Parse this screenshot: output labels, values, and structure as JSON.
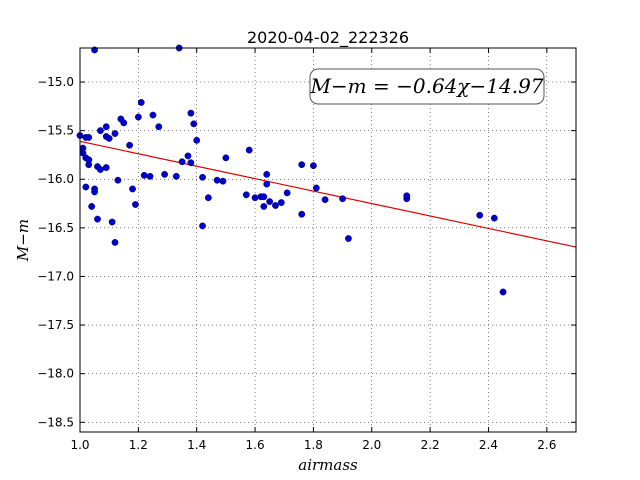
{
  "chart_data": {
    "type": "scatter",
    "title": "2020-04-02_222326",
    "xlabel": "airmass",
    "ylabel": "M−m",
    "xlim": [
      1.0,
      2.7
    ],
    "ylim": [
      -18.6,
      -14.65
    ],
    "y_inverted": false,
    "grid": true,
    "x_ticks": [
      1.0,
      1.2,
      1.4,
      1.6,
      1.8,
      2.0,
      2.2,
      2.4,
      2.6
    ],
    "x_tick_labels": [
      "1.0",
      "1.2",
      "1.4",
      "1.6",
      "1.8",
      "2.0",
      "2.2",
      "2.4",
      "2.6"
    ],
    "y_ticks": [
      -15.0,
      -15.5,
      -16.0,
      -16.5,
      -17.0,
      -17.5,
      -18.0,
      -18.5
    ],
    "y_tick_labels": [
      "−15.0",
      "−15.5",
      "−16.0",
      "−16.5",
      "−17.0",
      "−17.5",
      "−18.0",
      "−18.5"
    ],
    "annotation": "M−m = −0.64χ−14.97",
    "fit_line": {
      "slope": -0.64,
      "intercept": -14.97,
      "color": "#dd0000"
    },
    "marker_color": "#0000cc",
    "series": [
      {
        "points": [
          [
            1.0,
            -15.55
          ],
          [
            1.01,
            -15.68
          ],
          [
            1.01,
            -15.73
          ],
          [
            1.02,
            -15.57
          ],
          [
            1.02,
            -15.78
          ],
          [
            1.02,
            -16.08
          ],
          [
            1.03,
            -15.57
          ],
          [
            1.03,
            -15.8
          ],
          [
            1.03,
            -15.85
          ],
          [
            1.03,
            -15.8
          ],
          [
            1.04,
            -16.28
          ],
          [
            1.05,
            -16.1
          ],
          [
            1.05,
            -16.13
          ],
          [
            1.05,
            -14.67
          ],
          [
            1.06,
            -16.41
          ],
          [
            1.06,
            -15.87
          ],
          [
            1.07,
            -15.5
          ],
          [
            1.07,
            -15.9
          ],
          [
            1.09,
            -15.46
          ],
          [
            1.09,
            -15.88
          ],
          [
            1.09,
            -15.56
          ],
          [
            1.1,
            -15.58
          ],
          [
            1.11,
            -16.44
          ],
          [
            1.12,
            -15.53
          ],
          [
            1.12,
            -16.65
          ],
          [
            1.13,
            -16.01
          ],
          [
            1.14,
            -15.38
          ],
          [
            1.15,
            -15.42
          ],
          [
            1.17,
            -15.65
          ],
          [
            1.18,
            -16.1
          ],
          [
            1.19,
            -16.26
          ],
          [
            1.2,
            -15.36
          ],
          [
            1.21,
            -15.21
          ],
          [
            1.22,
            -15.96
          ],
          [
            1.24,
            -15.97
          ],
          [
            1.25,
            -15.34
          ],
          [
            1.27,
            -15.46
          ],
          [
            1.29,
            -15.95
          ],
          [
            1.33,
            -15.97
          ],
          [
            1.34,
            -14.65
          ],
          [
            1.35,
            -15.82
          ],
          [
            1.37,
            -15.76
          ],
          [
            1.38,
            -15.32
          ],
          [
            1.38,
            -15.83
          ],
          [
            1.39,
            -15.43
          ],
          [
            1.4,
            -15.6
          ],
          [
            1.42,
            -15.98
          ],
          [
            1.42,
            -16.48
          ],
          [
            1.44,
            -16.19
          ],
          [
            1.47,
            -16.01
          ],
          [
            1.49,
            -16.02
          ],
          [
            1.5,
            -15.78
          ],
          [
            1.57,
            -16.16
          ],
          [
            1.58,
            -15.7
          ],
          [
            1.6,
            -16.19
          ],
          [
            1.62,
            -16.18
          ],
          [
            1.63,
            -16.28
          ],
          [
            1.63,
            -16.18
          ],
          [
            1.64,
            -16.05
          ],
          [
            1.64,
            -15.95
          ],
          [
            1.65,
            -16.23
          ],
          [
            1.67,
            -16.27
          ],
          [
            1.69,
            -16.24
          ],
          [
            1.71,
            -16.14
          ],
          [
            1.76,
            -15.85
          ],
          [
            1.76,
            -16.36
          ],
          [
            1.8,
            -15.86
          ],
          [
            1.81,
            -16.09
          ],
          [
            1.84,
            -16.21
          ],
          [
            1.9,
            -16.2
          ],
          [
            1.92,
            -16.61
          ],
          [
            2.12,
            -16.2
          ],
          [
            2.12,
            -16.17
          ],
          [
            2.37,
            -16.37
          ],
          [
            2.42,
            -16.4
          ],
          [
            2.45,
            -17.16
          ]
        ]
      }
    ]
  }
}
